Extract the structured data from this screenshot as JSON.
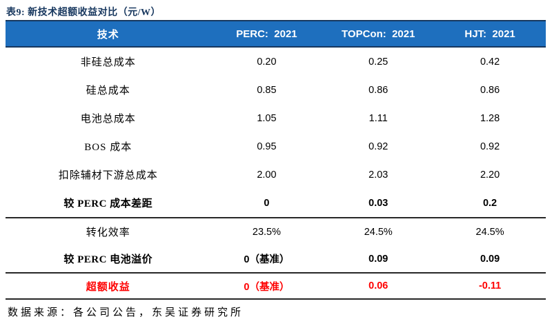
{
  "title": "表9: 新技术超额收益对比（元/W）",
  "colors": {
    "title_navy": "#17375E",
    "header_bg": "#1E6FBE",
    "header_border": "#17375E",
    "header_text": "#FFFFFF",
    "body_text": "#000000",
    "highlight_red": "#FE0000",
    "divider": "#262626"
  },
  "table": {
    "columns": [
      "技术",
      "PERC:  2021",
      "TOPCon:  2021",
      "HJT:  2021"
    ],
    "rows": [
      {
        "label": "非硅总成本",
        "values": [
          "0.20",
          "0.25",
          "0.42"
        ]
      },
      {
        "label": "硅总成本",
        "values": [
          "0.85",
          "0.86",
          "0.86"
        ]
      },
      {
        "label": "电池总成本",
        "values": [
          "1.05",
          "1.11",
          "1.28"
        ]
      },
      {
        "label": "BOS 成本",
        "values": [
          "0.95",
          "0.92",
          "0.92"
        ]
      },
      {
        "label": "扣除辅材下游总成本",
        "values": [
          "2.00",
          "2.03",
          "2.20"
        ]
      },
      {
        "label": "较 PERC 成本差距",
        "values": [
          "0",
          "0.03",
          "0.2"
        ]
      },
      {
        "label": "转化效率",
        "values": [
          "23.5%",
          "24.5%",
          "24.5%"
        ]
      },
      {
        "label": "较 PERC 电池溢价",
        "values": [
          "0（基准）",
          "0.09",
          "0.09"
        ]
      },
      {
        "label": "超额收益",
        "values": [
          "0（基准）",
          "0.06",
          "-0.11"
        ]
      }
    ]
  },
  "footer": "数据来源：各公司公告，东吴证券研究所"
}
